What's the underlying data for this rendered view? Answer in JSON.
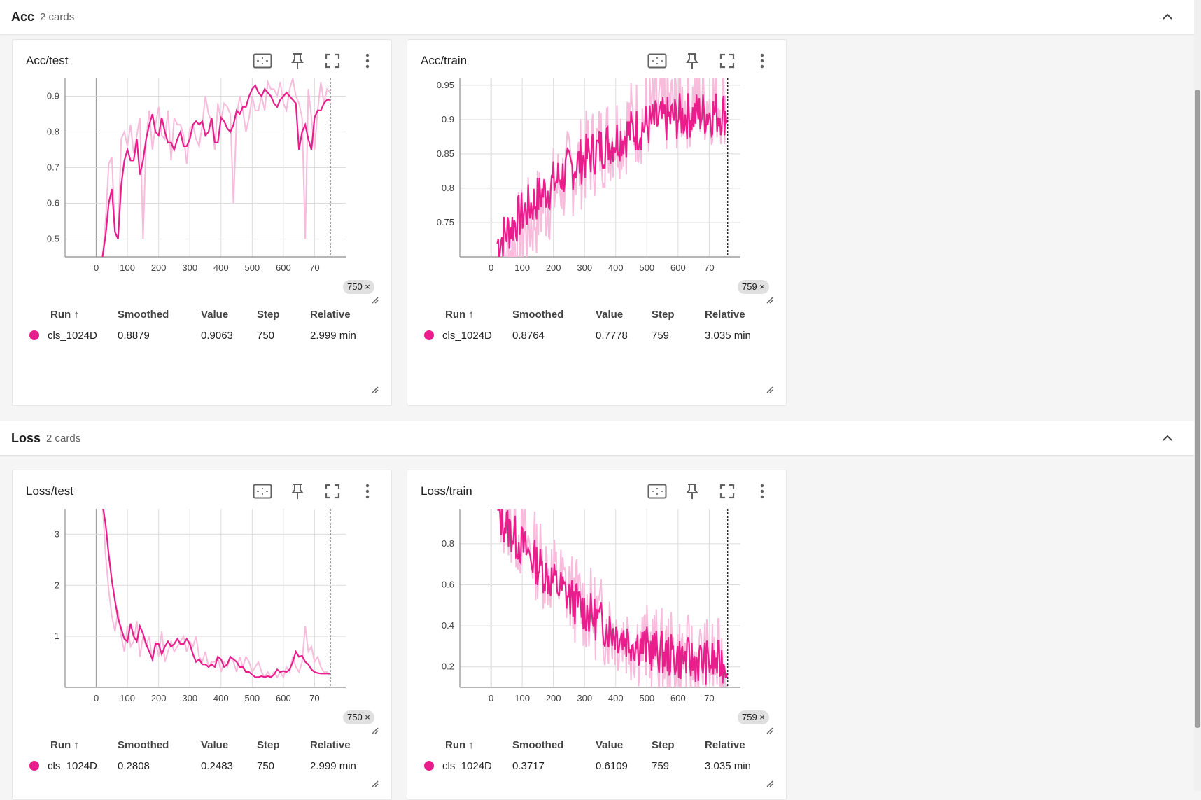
{
  "groups": [
    {
      "title": "Acc",
      "count": "2 cards"
    },
    {
      "title": "Loss",
      "count": "2 cards"
    }
  ],
  "legend_headers": {
    "run": "Run ↑",
    "smoothed": "Smoothed",
    "value": "Value",
    "step": "Step",
    "relative": "Relative"
  },
  "accent_color": "#e91e8c",
  "cards": [
    {
      "title": "Acc/test",
      "step_badge": "750 ×",
      "row": {
        "run": "cls_1024D",
        "smoothed": "0.8879",
        "value": "0.9063",
        "step": "750",
        "relative": "2.999 min"
      }
    },
    {
      "title": "Acc/train",
      "step_badge": "759 ×",
      "row": {
        "run": "cls_1024D",
        "smoothed": "0.8764",
        "value": "0.7778",
        "step": "759",
        "relative": "3.035 min"
      }
    },
    {
      "title": "Loss/test",
      "step_badge": "750 ×",
      "row": {
        "run": "cls_1024D",
        "smoothed": "0.2808",
        "value": "0.2483",
        "step": "750",
        "relative": "2.999 min"
      }
    },
    {
      "title": "Loss/train",
      "step_badge": "759 ×",
      "row": {
        "run": "cls_1024D",
        "smoothed": "0.3717",
        "value": "0.6109",
        "step": "759",
        "relative": "3.035 min"
      }
    }
  ],
  "chart_data": [
    {
      "type": "line",
      "title": "Acc/test",
      "x_ticks": [
        "0",
        "100",
        "200",
        "300",
        "400",
        "500",
        "600",
        "70"
      ],
      "y_ticks": [
        "0.5",
        "0.6",
        "0.7",
        "0.8",
        "0.9"
      ],
      "xlim": [
        -100,
        800
      ],
      "ylim": [
        0.45,
        0.95
      ],
      "cursor_step": 750,
      "series": [
        {
          "role": "raw",
          "color": "#f8bbdc",
          "x": [
            20,
            30,
            40,
            50,
            60,
            70,
            80,
            90,
            100,
            110,
            120,
            130,
            140,
            150,
            160,
            170,
            180,
            190,
            200,
            210,
            220,
            230,
            240,
            250,
            260,
            270,
            280,
            290,
            300,
            310,
            320,
            330,
            340,
            350,
            360,
            370,
            380,
            390,
            400,
            410,
            420,
            430,
            440,
            450,
            460,
            470,
            480,
            490,
            500,
            510,
            520,
            530,
            540,
            550,
            560,
            570,
            580,
            590,
            600,
            610,
            620,
            630,
            640,
            650,
            660,
            670,
            680,
            690,
            700,
            710,
            720,
            730,
            740,
            750
          ],
          "y": [
            0.45,
            0.55,
            0.71,
            0.73,
            0.52,
            0.5,
            0.78,
            0.8,
            0.76,
            0.82,
            0.74,
            0.79,
            0.84,
            0.5,
            0.78,
            0.86,
            0.75,
            0.82,
            0.87,
            0.79,
            0.78,
            0.86,
            0.72,
            0.84,
            0.82,
            0.82,
            0.79,
            0.71,
            0.81,
            0.82,
            0.78,
            0.76,
            0.82,
            0.9,
            0.85,
            0.83,
            0.75,
            0.88,
            0.83,
            0.88,
            0.87,
            0.85,
            0.6,
            0.84,
            0.9,
            0.86,
            0.8,
            0.84,
            0.9,
            0.86,
            0.86,
            0.9,
            0.86,
            0.94,
            0.92,
            0.92,
            0.9,
            0.94,
            0.88,
            0.86,
            0.92,
            0.95,
            0.9,
            0.88,
            0.84,
            0.5,
            0.92,
            0.84,
            0.75,
            0.86,
            0.94,
            0.88,
            0.92,
            0.91
          ]
        },
        {
          "role": "smoothed",
          "color": "#e91e8c",
          "x": [
            20,
            30,
            40,
            50,
            60,
            70,
            80,
            90,
            100,
            110,
            120,
            130,
            140,
            150,
            160,
            170,
            180,
            190,
            200,
            210,
            220,
            230,
            240,
            250,
            260,
            270,
            280,
            290,
            300,
            310,
            320,
            330,
            340,
            350,
            360,
            370,
            380,
            390,
            400,
            410,
            420,
            430,
            440,
            450,
            460,
            470,
            480,
            490,
            500,
            510,
            520,
            530,
            540,
            550,
            560,
            570,
            580,
            590,
            600,
            610,
            620,
            630,
            640,
            650,
            660,
            670,
            680,
            690,
            700,
            710,
            720,
            730,
            740,
            750
          ],
          "y": [
            0.45,
            0.51,
            0.6,
            0.64,
            0.52,
            0.5,
            0.65,
            0.72,
            0.75,
            0.72,
            0.72,
            0.78,
            0.68,
            0.72,
            0.78,
            0.82,
            0.85,
            0.8,
            0.79,
            0.84,
            0.8,
            0.77,
            0.77,
            0.75,
            0.78,
            0.8,
            0.76,
            0.76,
            0.78,
            0.82,
            0.83,
            0.82,
            0.83,
            0.79,
            0.8,
            0.84,
            0.77,
            0.77,
            0.84,
            0.83,
            0.81,
            0.8,
            0.82,
            0.86,
            0.85,
            0.87,
            0.87,
            0.9,
            0.92,
            0.93,
            0.91,
            0.9,
            0.92,
            0.91,
            0.9,
            0.88,
            0.87,
            0.89,
            0.9,
            0.91,
            0.9,
            0.89,
            0.88,
            0.75,
            0.8,
            0.82,
            0.78,
            0.75,
            0.84,
            0.86,
            0.86,
            0.88,
            0.89,
            0.89
          ]
        }
      ]
    },
    {
      "type": "line",
      "title": "Acc/train",
      "x_ticks": [
        "0",
        "100",
        "200",
        "300",
        "400",
        "500",
        "600",
        "70"
      ],
      "y_ticks": [
        "0.75",
        "0.8",
        "0.85",
        "0.9",
        "0.95"
      ],
      "xlim": [
        -100,
        800
      ],
      "ylim": [
        0.7,
        0.96
      ],
      "cursor_step": 759,
      "series": [
        {
          "role": "raw",
          "color": "#f8bbdc",
          "seed": 7,
          "x_start": 20,
          "x_end": 759,
          "trend": [
            0.68,
            0.93
          ],
          "noise": 0.07
        },
        {
          "role": "smoothed",
          "color": "#e91e8c",
          "seed": 7,
          "x_start": 20,
          "x_end": 759,
          "trend": [
            0.72,
            0.91
          ],
          "noise": 0.035
        }
      ]
    },
    {
      "type": "line",
      "title": "Loss/test",
      "x_ticks": [
        "0",
        "100",
        "200",
        "300",
        "400",
        "500",
        "600",
        "70"
      ],
      "y_ticks": [
        "1",
        "2",
        "3"
      ],
      "xlim": [
        -100,
        800
      ],
      "ylim": [
        0,
        3.5
      ],
      "cursor_step": 750,
      "series": [
        {
          "role": "raw",
          "color": "#f8bbdc",
          "x": [
            20,
            30,
            40,
            50,
            60,
            70,
            80,
            90,
            100,
            110,
            120,
            130,
            140,
            150,
            160,
            170,
            180,
            190,
            200,
            210,
            220,
            230,
            240,
            250,
            260,
            270,
            280,
            290,
            300,
            310,
            320,
            330,
            340,
            350,
            360,
            370,
            380,
            390,
            400,
            410,
            420,
            430,
            440,
            450,
            460,
            470,
            480,
            490,
            500,
            510,
            520,
            530,
            540,
            550,
            560,
            570,
            580,
            590,
            600,
            610,
            620,
            630,
            640,
            650,
            660,
            670,
            680,
            690,
            700,
            710,
            720,
            730,
            740,
            750
          ],
          "y": [
            3.6,
            2.6,
            1.9,
            1.4,
            1.1,
            1.5,
            1.0,
            0.7,
            1.2,
            0.8,
            0.9,
            1.3,
            0.6,
            1.0,
            0.8,
            1.0,
            0.5,
            0.9,
            0.6,
            1.1,
            0.5,
            0.7,
            0.9,
            0.7,
            0.8,
            0.9,
            1.0,
            0.7,
            0.9,
            0.8,
            1.0,
            0.6,
            0.5,
            0.7,
            0.4,
            0.5,
            0.5,
            0.6,
            0.3,
            0.5,
            0.4,
            0.6,
            0.5,
            0.3,
            0.6,
            0.4,
            0.6,
            0.5,
            0.3,
            0.4,
            0.5,
            0.3,
            0.2,
            0.3,
            0.2,
            0.3,
            0.2,
            0.3,
            0.2,
            0.4,
            0.3,
            0.6,
            0.4,
            0.3,
            0.5,
            1.2,
            0.7,
            0.8,
            0.5,
            0.6,
            0.4,
            0.3,
            0.3,
            0.25
          ]
        },
        {
          "role": "smoothed",
          "color": "#e91e8c",
          "x": [
            20,
            30,
            40,
            50,
            60,
            70,
            80,
            90,
            100,
            110,
            120,
            130,
            140,
            150,
            160,
            170,
            180,
            190,
            200,
            210,
            220,
            230,
            240,
            250,
            260,
            270,
            280,
            290,
            300,
            310,
            320,
            330,
            340,
            350,
            360,
            370,
            380,
            390,
            400,
            410,
            420,
            430,
            440,
            450,
            460,
            470,
            480,
            490,
            500,
            510,
            520,
            530,
            540,
            550,
            560,
            570,
            580,
            590,
            600,
            610,
            620,
            630,
            640,
            650,
            660,
            670,
            680,
            690,
            700,
            710,
            720,
            730,
            740,
            750
          ],
          "y": [
            3.6,
            3.2,
            2.6,
            2.1,
            1.7,
            1.35,
            1.15,
            0.95,
            0.9,
            1.25,
            1.0,
            0.9,
            1.2,
            1.05,
            0.85,
            0.7,
            0.55,
            0.85,
            0.85,
            0.65,
            0.8,
            0.9,
            0.8,
            0.85,
            0.95,
            0.85,
            0.85,
            0.95,
            0.85,
            0.65,
            0.5,
            0.55,
            0.45,
            0.45,
            0.4,
            0.45,
            0.4,
            0.6,
            0.55,
            0.4,
            0.45,
            0.6,
            0.55,
            0.5,
            0.4,
            0.4,
            0.3,
            0.3,
            0.25,
            0.2,
            0.2,
            0.22,
            0.2,
            0.22,
            0.2,
            0.25,
            0.35,
            0.3,
            0.32,
            0.3,
            0.35,
            0.5,
            0.7,
            0.6,
            0.62,
            0.5,
            0.45,
            0.35,
            0.3,
            0.28,
            0.27,
            0.27,
            0.27,
            0.27
          ]
        }
      ]
    },
    {
      "type": "line",
      "title": "Loss/train",
      "x_ticks": [
        "0",
        "100",
        "200",
        "300",
        "400",
        "500",
        "600",
        "70"
      ],
      "y_ticks": [
        "0.2",
        "0.4",
        "0.6",
        "0.8"
      ],
      "xlim": [
        -100,
        800
      ],
      "ylim": [
        0.1,
        0.97
      ],
      "cursor_step": 759,
      "series": [
        {
          "role": "raw",
          "color": "#f8bbdc",
          "seed": 13,
          "x_start": 20,
          "x_end": 759,
          "trend": [
            1.0,
            0.22
          ],
          "noise": 0.22
        },
        {
          "role": "smoothed",
          "color": "#e91e8c",
          "seed": 13,
          "x_start": 20,
          "x_end": 759,
          "trend": [
            0.95,
            0.22
          ],
          "noise": 0.11
        }
      ]
    }
  ]
}
